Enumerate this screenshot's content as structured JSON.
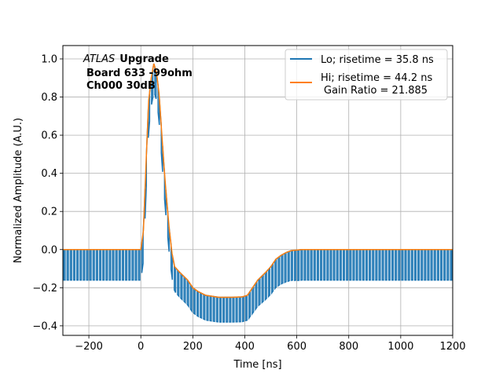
{
  "chart_data": {
    "type": "line",
    "xlabel": "Time [ns]",
    "ylabel": "Normalized Amplitude (A.U.)",
    "xlim": [
      -300,
      1200
    ],
    "ylim": [
      -0.45,
      1.07
    ],
    "xticks": [
      -200,
      0,
      200,
      400,
      600,
      800,
      1000,
      1200
    ],
    "xtick_labels": [
      "−200",
      "0",
      "200",
      "400",
      "600",
      "800",
      "1000",
      "1200"
    ],
    "yticks": [
      -0.4,
      -0.2,
      0.0,
      0.2,
      0.4,
      0.6,
      0.8,
      1.0
    ],
    "ytick_labels": [
      "−0.4",
      "−0.2",
      "0.0",
      "0.2",
      "0.4",
      "0.6",
      "0.8",
      "1.0"
    ],
    "grid": true,
    "legend_position": "top-right",
    "annotation": {
      "atlas": "ATLAS",
      "upgrade": "Upgrade",
      "line2": "Board 633 -99ohm",
      "line3": "Ch000 30dB"
    },
    "series": [
      {
        "name": "Lo; risetime = 35.8 ns",
        "color": "#1f77b4",
        "t_start": -300,
        "t_end": 1200,
        "period": 12.5,
        "envelope": [
          [
            -300,
            0.0
          ],
          [
            -10,
            0.0
          ],
          [
            0,
            0.0
          ],
          [
            10,
            0.1
          ],
          [
            20,
            0.45
          ],
          [
            30,
            0.78
          ],
          [
            40,
            0.9
          ],
          [
            50,
            0.975
          ],
          [
            60,
            0.93
          ],
          [
            70,
            0.82
          ],
          [
            80,
            0.62
          ],
          [
            90,
            0.42
          ],
          [
            100,
            0.25
          ],
          [
            110,
            0.1
          ],
          [
            120,
            -0.02
          ],
          [
            130,
            -0.09
          ],
          [
            150,
            -0.12
          ],
          [
            180,
            -0.16
          ],
          [
            200,
            -0.2
          ],
          [
            220,
            -0.22
          ],
          [
            250,
            -0.24
          ],
          [
            300,
            -0.25
          ],
          [
            350,
            -0.25
          ],
          [
            390,
            -0.248
          ],
          [
            410,
            -0.24
          ],
          [
            430,
            -0.2
          ],
          [
            450,
            -0.16
          ],
          [
            480,
            -0.12
          ],
          [
            500,
            -0.09
          ],
          [
            520,
            -0.05
          ],
          [
            540,
            -0.03
          ],
          [
            560,
            -0.015
          ],
          [
            580,
            -0.005
          ],
          [
            620,
            0.0
          ],
          [
            1200,
            0.0
          ]
        ],
        "sample_drop": [
          [
            -300,
            0.16
          ],
          [
            0,
            0.16
          ],
          [
            100,
            0.13
          ],
          [
            400,
            0.13
          ],
          [
            600,
            0.16
          ],
          [
            1200,
            0.16
          ]
        ]
      },
      {
        "name": "Hi; risetime = 44.2 ns",
        "name_line2": "Gain Ratio = 21.885",
        "color": "#ff7f0e",
        "points": [
          [
            -300,
            0.0
          ],
          [
            -10,
            0.0
          ],
          [
            0,
            0.0
          ],
          [
            10,
            0.1
          ],
          [
            20,
            0.45
          ],
          [
            30,
            0.78
          ],
          [
            40,
            0.9
          ],
          [
            50,
            0.975
          ],
          [
            60,
            0.93
          ],
          [
            70,
            0.82
          ],
          [
            80,
            0.62
          ],
          [
            90,
            0.42
          ],
          [
            100,
            0.25
          ],
          [
            110,
            0.1
          ],
          [
            120,
            -0.02
          ],
          [
            130,
            -0.09
          ],
          [
            150,
            -0.12
          ],
          [
            180,
            -0.16
          ],
          [
            200,
            -0.2
          ],
          [
            220,
            -0.22
          ],
          [
            250,
            -0.24
          ],
          [
            300,
            -0.25
          ],
          [
            350,
            -0.25
          ],
          [
            390,
            -0.248
          ],
          [
            410,
            -0.24
          ],
          [
            430,
            -0.2
          ],
          [
            450,
            -0.16
          ],
          [
            480,
            -0.12
          ],
          [
            500,
            -0.09
          ],
          [
            520,
            -0.05
          ],
          [
            540,
            -0.03
          ],
          [
            560,
            -0.015
          ],
          [
            580,
            -0.005
          ],
          [
            620,
            0.0
          ],
          [
            1200,
            0.0
          ]
        ]
      }
    ]
  }
}
